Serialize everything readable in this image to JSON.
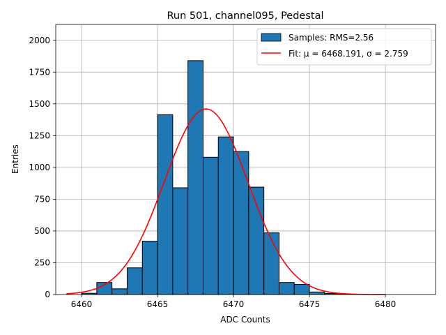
{
  "chart_data": {
    "type": "bar",
    "title": "Run 501, channel095, Pedestal",
    "xlabel": "ADC Counts",
    "ylabel": "Entries",
    "xlim": [
      6458.3,
      6483.3
    ],
    "ylim": [
      0,
      2125
    ],
    "grid": true,
    "xticks": [
      6460,
      6465,
      6470,
      6475,
      6480
    ],
    "yticks": [
      0,
      250,
      500,
      750,
      1000,
      1250,
      1500,
      1750,
      2000
    ],
    "histogram": {
      "name": "Samples: RMS=2.56",
      "bin_width": 1,
      "bin_starts": [
        6460,
        6461,
        6462,
        6463,
        6464,
        6465,
        6466,
        6467,
        6468,
        6469,
        6470,
        6471,
        6472,
        6473,
        6474,
        6475,
        6476,
        6477
      ],
      "values": [
        10,
        95,
        45,
        210,
        420,
        1415,
        840,
        1840,
        1080,
        1240,
        1125,
        845,
        485,
        95,
        80,
        20,
        8,
        2
      ],
      "color": "#1f77b4",
      "edge_color": "#000000"
    },
    "fit": {
      "name": "Fit: μ = 6468.191, σ = 2.759",
      "type": "gaussian",
      "mu": 6468.191,
      "sigma": 2.759,
      "amplitude": 1460,
      "x_range": [
        6459,
        6480
      ],
      "color": "#ff0000"
    },
    "legend": {
      "location": "top-right",
      "entries": [
        "Samples: RMS=2.56",
        "Fit: μ = 6468.191, σ = 2.759"
      ]
    }
  }
}
